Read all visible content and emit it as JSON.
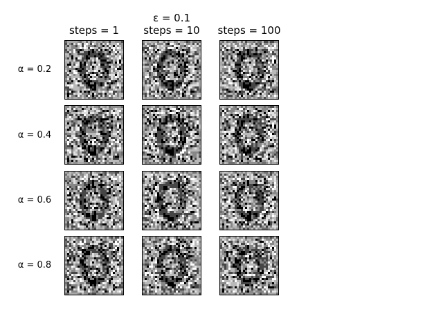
{
  "figure": {
    "suptitle": "ε = 0.1",
    "columns": [
      {
        "label": "steps = 1"
      },
      {
        "label": "steps = 10"
      },
      {
        "label": "steps = 100"
      }
    ],
    "rows": [
      {
        "label": "α = 0.2"
      },
      {
        "label": "α = 0.4"
      },
      {
        "label": "α = 0.6"
      },
      {
        "label": "α = 0.8"
      }
    ],
    "image_style": "grayscale-noise-pattern"
  }
}
